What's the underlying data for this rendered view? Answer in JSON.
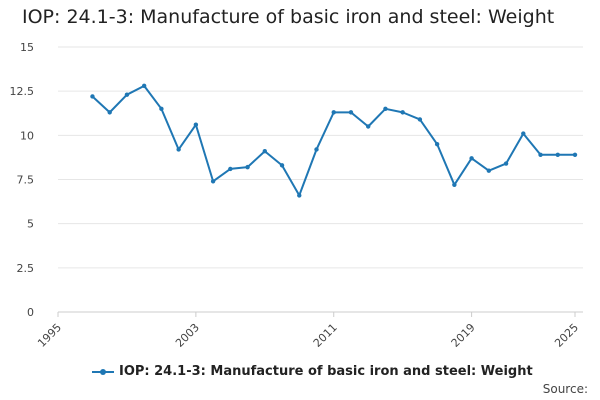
{
  "title": "IOP: 24.1-3: Manufacture of basic iron and steel: Weight",
  "source_label": "Source:",
  "colors": {
    "series": "#1f77b4",
    "grid": "#e6e6e6",
    "axis": "#cccccc"
  },
  "chart_data": {
    "type": "line",
    "title": "IOP: 24.1-3: Manufacture of basic iron and steel: Weight",
    "xlabel": "",
    "ylabel": "",
    "xlim": [
      1995,
      2025
    ],
    "ylim": [
      0,
      15
    ],
    "grid": true,
    "legend_position": "bottom",
    "x_ticks": [
      "1995",
      "2003",
      "2011",
      "2019",
      "2025"
    ],
    "y_ticks": [
      "0",
      "2.5",
      "5",
      "7.5",
      "10",
      "12.5",
      "15"
    ],
    "series": [
      {
        "name": "IOP: 24.1-3: Manufacture of basic iron and steel: Weight",
        "x": [
          1997,
          1998,
          1999,
          2000,
          2001,
          2002,
          2003,
          2004,
          2005,
          2006,
          2007,
          2008,
          2009,
          2010,
          2011,
          2012,
          2013,
          2014,
          2015,
          2016,
          2017,
          2018,
          2019,
          2020,
          2021,
          2022,
          2023,
          2024,
          2025
        ],
        "values": [
          12.2,
          11.3,
          12.3,
          12.8,
          11.5,
          9.2,
          10.6,
          7.4,
          8.1,
          8.2,
          9.1,
          8.3,
          6.6,
          9.2,
          11.3,
          11.3,
          10.5,
          11.5,
          11.3,
          10.9,
          9.5,
          7.2,
          8.7,
          8.0,
          8.4,
          10.1,
          8.9,
          8.9,
          8.9
        ]
      }
    ]
  }
}
